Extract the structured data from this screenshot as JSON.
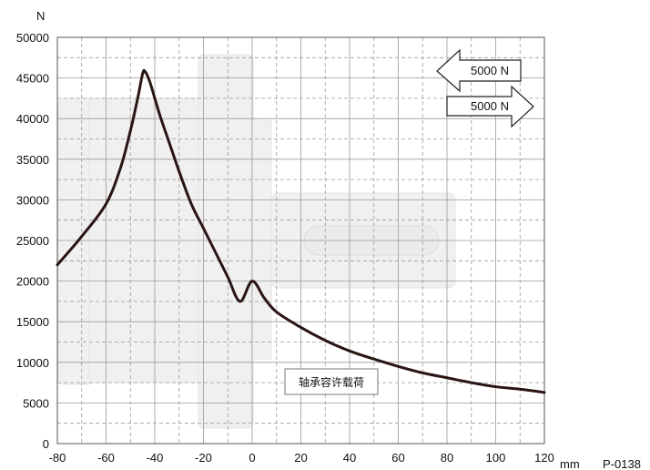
{
  "chart_data": {
    "type": "line",
    "title": "",
    "xlabel": "mm",
    "ylabel": "N",
    "xlim": [
      -80,
      120
    ],
    "ylim": [
      0,
      50000
    ],
    "grid": true,
    "x_ticks": [
      -80,
      -60,
      -40,
      -20,
      0,
      20,
      40,
      60,
      80,
      100,
      120
    ],
    "y_ticks": [
      0,
      5000,
      10000,
      15000,
      20000,
      25000,
      30000,
      35000,
      40000,
      45000,
      50000
    ],
    "series": [
      {
        "name": "轴承容许载荷",
        "color": "#2a1414",
        "x": [
          -80,
          -70,
          -60,
          -54,
          -50,
          -47,
          -45,
          -44,
          -42,
          -38,
          -34,
          -30,
          -25,
          -20,
          -15,
          -10,
          -5,
          0,
          5,
          10,
          20,
          30,
          40,
          50,
          60,
          70,
          80,
          90,
          100,
          110,
          120
        ],
        "y": [
          22000,
          25500,
          29500,
          34000,
          38500,
          42500,
          45500,
          45800,
          44500,
          40500,
          37000,
          33500,
          29500,
          26500,
          23500,
          20500,
          17500,
          20000,
          17900,
          16200,
          14300,
          12700,
          11400,
          10400,
          9500,
          8700,
          8100,
          7500,
          7000,
          6700,
          6300
        ]
      }
    ],
    "annotations": {
      "curve_label": "轴承容许载荷",
      "arrow_left_label": "5000 N",
      "arrow_right_label": "5000 N",
      "figure_code": "P-0138"
    }
  }
}
